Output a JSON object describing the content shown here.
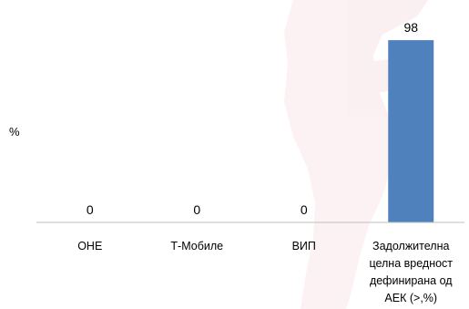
{
  "chart_data": {
    "type": "bar",
    "title": "",
    "xlabel": "",
    "ylabel": "%",
    "ylim": [
      0,
      100
    ],
    "grid": false,
    "legend": "none",
    "categories": [
      [
        "ОНЕ"
      ],
      [
        "Т-Мобиле"
      ],
      [
        "ВИП"
      ],
      [
        "Задолжителна",
        "целна вредност",
        "дефинирана од",
        "АЕК (>,%)"
      ]
    ],
    "values": [
      0,
      0,
      0,
      98
    ],
    "data_labels": [
      "0",
      "0",
      "0",
      "98"
    ],
    "bar_color": "#4f81bd"
  },
  "colors": {
    "watermark": "#c8102e",
    "axis": "#bfbfbf"
  }
}
